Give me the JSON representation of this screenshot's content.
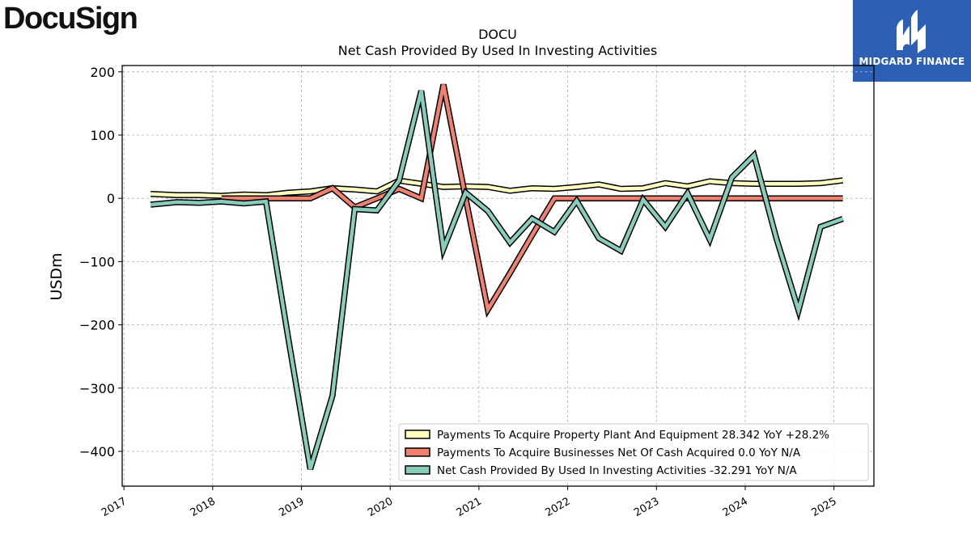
{
  "brand": {
    "company": "DocuSign",
    "partner": "MIDGARD FINANCE",
    "partner_color": "#2d5fb5"
  },
  "chart_data": {
    "type": "line",
    "title": "DOCU",
    "subtitle": "Net Cash Provided By Used In Investing Activities",
    "xlabel": "",
    "ylabel": "USDm",
    "ylim": [
      -455,
      210
    ],
    "xlim": [
      2016.98,
      2025.45
    ],
    "yticks": [
      200,
      100,
      0,
      -100,
      -200,
      -300,
      -400
    ],
    "ytick_labels": [
      "200",
      "100",
      "0",
      "−100",
      "−200",
      "−300",
      "−400"
    ],
    "xticks": [
      2017,
      2018,
      2019,
      2020,
      2021,
      2022,
      2023,
      2024,
      2025
    ],
    "xtick_labels": [
      "2017",
      "2018",
      "2019",
      "2020",
      "2021",
      "2022",
      "2023",
      "2024",
      "2025"
    ],
    "grid": true,
    "legend_position": "bottom-right",
    "series": [
      {
        "name": "Payments To Acquire Property Plant And Equipment",
        "legend_label": "Payments To Acquire Property Plant And Equipment  28.342 YoY +28.2%",
        "color": "#ffffc0",
        "x": [
          2017.3,
          2017.6,
          2017.85,
          2018.1,
          2018.35,
          2018.6,
          2018.85,
          2019.1,
          2019.35,
          2019.6,
          2019.85,
          2020.1,
          2020.35,
          2020.6,
          2020.85,
          2021.1,
          2021.35,
          2021.6,
          2021.85,
          2022.1,
          2022.35,
          2022.6,
          2022.85,
          2023.1,
          2023.35,
          2023.6,
          2023.85,
          2024.1,
          2024.35,
          2024.6,
          2024.85,
          2025.1
        ],
        "values": [
          7,
          5,
          5,
          4,
          6,
          5,
          9,
          11,
          16,
          14,
          11,
          28,
          23,
          18,
          19,
          18,
          12,
          16,
          15,
          18,
          22,
          15,
          16,
          24,
          19,
          27,
          24,
          23,
          23,
          23,
          24,
          28.342
        ]
      },
      {
        "name": "Payments To Acquire Businesses Net Of Cash Acquired",
        "legend_label": "Payments To Acquire Businesses Net Of Cash Acquired  0.0 YoY N/A",
        "color": "#f08070",
        "x": [
          2018.1,
          2018.35,
          2018.6,
          2018.85,
          2019.1,
          2019.35,
          2019.6,
          2019.85,
          2020.1,
          2020.35,
          2020.6,
          2020.85,
          2021.1,
          2021.35,
          2021.6,
          2021.85,
          2022.1,
          2022.35,
          2022.6,
          2022.85,
          2023.1,
          2023.35,
          2023.6,
          2023.85,
          2024.1,
          2024.35,
          2024.6,
          2024.85,
          2025.1
        ],
        "values": [
          0,
          0,
          0,
          0,
          0,
          16,
          -14,
          0,
          15,
          0,
          180,
          0,
          -176,
          -118,
          -58,
          0,
          0,
          0,
          0,
          0,
          0,
          0,
          0,
          0,
          0,
          0,
          0,
          0,
          0.0
        ]
      },
      {
        "name": "Net Cash Provided By Used In Investing Activities",
        "legend_label": "Net Cash Provided By Used In Investing Activities  -32.291 YoY N/A",
        "color": "#88ccbb",
        "x": [
          2017.3,
          2017.6,
          2017.85,
          2018.1,
          2018.35,
          2018.6,
          2018.85,
          2019.1,
          2019.35,
          2019.6,
          2019.85,
          2020.1,
          2020.35,
          2020.6,
          2020.85,
          2021.1,
          2021.35,
          2021.6,
          2021.85,
          2022.1,
          2022.35,
          2022.6,
          2022.85,
          2023.1,
          2023.35,
          2023.6,
          2023.85,
          2024.1,
          2024.35,
          2024.6,
          2024.85,
          2025.1
        ],
        "values": [
          -10,
          -6,
          -7,
          -5,
          -8,
          -5,
          -220,
          -428,
          -312,
          -17,
          -19,
          28,
          170,
          -80,
          9,
          -20,
          -70,
          -32,
          -53,
          -4,
          -63,
          -83,
          -2,
          -45,
          8,
          -65,
          33,
          68,
          -63,
          -177,
          -45,
          -32.291
        ]
      }
    ]
  }
}
